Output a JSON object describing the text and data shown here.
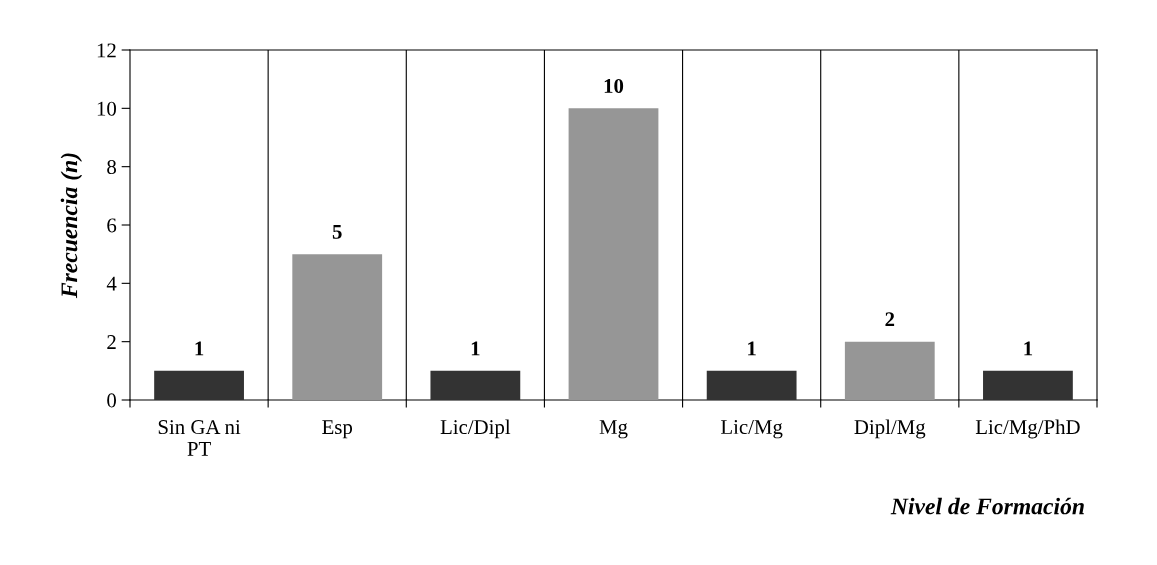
{
  "chart_data": {
    "type": "bar",
    "categories": [
      "Sin GA ni\nPT",
      "Esp",
      "Lic/Dipl",
      "Mg",
      "Lic/Mg",
      "Dipl/Mg",
      "Lic/Mg/PhD"
    ],
    "values": [
      1,
      5,
      1,
      10,
      1,
      2,
      1
    ],
    "colors": [
      "#333333",
      "#969696",
      "#333333",
      "#969696",
      "#333333",
      "#969696",
      "#333333"
    ],
    "xlabel": "Nivel de Formación",
    "ylabel": "Frecuencia (n)",
    "ylim": [
      0,
      12
    ],
    "yticks": [
      0,
      2,
      4,
      6,
      8,
      10,
      12
    ],
    "grid": "x",
    "data_labels": true
  }
}
